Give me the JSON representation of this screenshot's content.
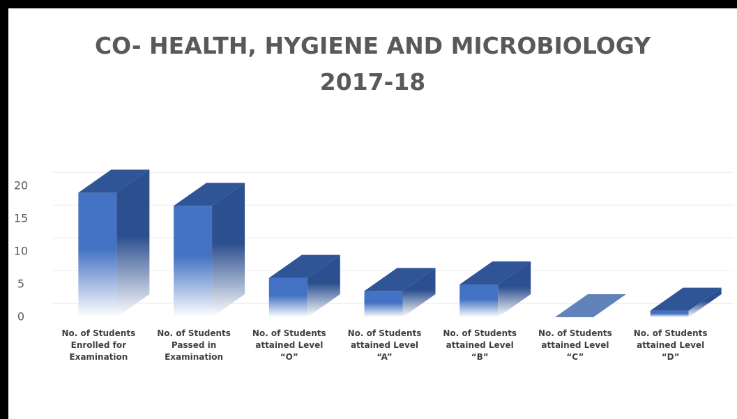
{
  "chart_data": {
    "type": "bar3d",
    "title": "CO- HEALTH, HYGIENE AND MICROBIOLOGY\n2017-18",
    "categories": [
      "No. of Students\nEnrolled for\nExamination",
      "No. of Students\nPassed in\nExamination",
      "No. of Students\nattained Level\n“O”",
      "No. of Students\nattained Level\n“A”",
      "No. of Students\nattained Level\n“B”",
      "No. of Students\nattained Level\n“C”",
      "No. of Students\nattained Level\n“D”"
    ],
    "values": [
      19,
      17,
      6,
      4,
      5,
      0,
      1
    ],
    "color": "#4472c4",
    "ylim": [
      0,
      20
    ],
    "yticks": [
      0,
      5,
      10,
      15,
      20
    ],
    "grid": true
  }
}
